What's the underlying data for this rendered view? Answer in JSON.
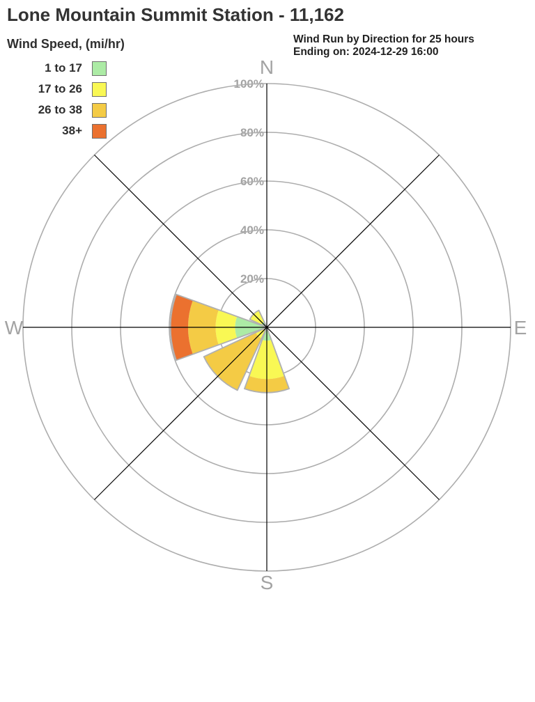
{
  "title": "Lone Mountain Summit Station - 11,162",
  "header": {
    "line1": "Wind Run by Direction for 25 hours",
    "line2": "Ending on: 2024-12-29 16:00"
  },
  "legend": {
    "title": "Wind Speed, (mi/hr)"
  },
  "chart_data": {
    "type": "windrose",
    "title": "Lone Mountain Summit Station - 11,162",
    "subtitle": "Wind Run by Direction for 25 hours Ending on: 2024-12-29 16:00",
    "units": "percent of wind run",
    "legend_title": "Wind Speed, (mi/hr)",
    "speed_bins": [
      {
        "label": "1 to 17",
        "color": "#ACEBA5"
      },
      {
        "label": "17 to 26",
        "color": "#F9F854"
      },
      {
        "label": "26 to 38",
        "color": "#F4CB45"
      },
      {
        "label": "38+",
        "color": "#EB712F"
      }
    ],
    "ring_labels": [
      "20%",
      "40%",
      "60%",
      "80%",
      "100%"
    ],
    "ring_percents": [
      20,
      40,
      60,
      80,
      100
    ],
    "compass_labels": {
      "north": "N",
      "east": "E",
      "south": "S",
      "west": "W"
    },
    "petal_width_deg": 40,
    "max_percent": 100,
    "grid_color": "#adadad",
    "axis_color": "#000000",
    "petal_outline_color": "#b0b0b0",
    "directions": [
      {
        "dir": "N",
        "compass_deg": 0,
        "segments": [
          0,
          0,
          0,
          0
        ]
      },
      {
        "dir": "NE",
        "compass_deg": 45,
        "segments": [
          0,
          0,
          0,
          0
        ]
      },
      {
        "dir": "E",
        "compass_deg": 90,
        "segments": [
          0,
          0,
          0,
          0
        ]
      },
      {
        "dir": "SE",
        "compass_deg": 135,
        "segments": [
          0,
          0,
          0,
          0
        ]
      },
      {
        "dir": "S",
        "compass_deg": 180,
        "segments": [
          5.5,
          15.7,
          5.6,
          0
        ]
      },
      {
        "dir": "SW",
        "compass_deg": 225,
        "segments": [
          0,
          5.0,
          23.5,
          0
        ]
      },
      {
        "dir": "W",
        "compass_deg": 270,
        "segments": [
          13.0,
          8.0,
          11.3,
          7.2
        ]
      },
      {
        "dir": "NW",
        "compass_deg": 315,
        "segments": [
          2.5,
          5.2,
          0,
          0
        ]
      }
    ]
  }
}
